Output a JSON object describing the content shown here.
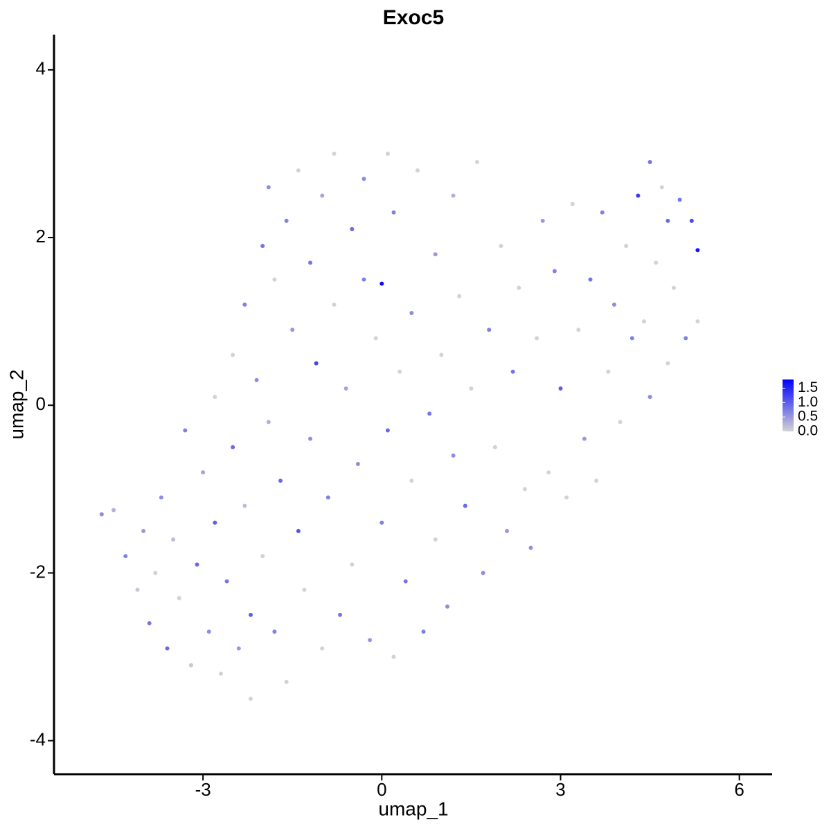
{
  "chart_data": {
    "type": "scatter",
    "title": "Exoc5",
    "x_label": "umap_1",
    "y_label": "umap_2",
    "x": [
      -4.7,
      -4.5,
      -4.3,
      -4.1,
      -4.0,
      -3.9,
      -3.8,
      -3.7,
      -3.6,
      -3.5,
      -3.4,
      -3.3,
      -3.2,
      -3.1,
      -3.0,
      -2.9,
      -2.8,
      -2.8,
      -2.7,
      -2.6,
      -2.5,
      -2.5,
      -2.4,
      -2.3,
      -2.3,
      -2.2,
      -2.2,
      -2.1,
      -2.0,
      -2.0,
      -1.9,
      -1.9,
      -1.8,
      -1.8,
      -1.7,
      -1.6,
      -1.6,
      -1.5,
      -1.4,
      -1.4,
      -1.3,
      -1.2,
      -1.2,
      -1.1,
      -1.0,
      -1.0,
      -0.9,
      -0.8,
      -0.8,
      -0.7,
      -0.6,
      -0.5,
      -0.5,
      -0.4,
      -0.3,
      -0.3,
      -0.2,
      -0.1,
      0.0,
      0.0,
      0.1,
      0.1,
      0.2,
      0.2,
      0.3,
      0.4,
      0.5,
      0.5,
      0.6,
      0.7,
      0.8,
      0.9,
      0.9,
      1.0,
      1.1,
      1.2,
      1.2,
      1.3,
      1.4,
      1.5,
      1.6,
      1.7,
      1.8,
      1.9,
      2.0,
      2.1,
      2.2,
      2.3,
      2.4,
      2.5,
      2.6,
      2.7,
      2.8,
      2.9,
      3.0,
      3.1,
      3.2,
      3.3,
      3.4,
      3.5,
      3.6,
      3.7,
      3.8,
      3.9,
      4.0,
      4.1,
      4.2,
      4.3,
      4.4,
      4.5,
      4.5,
      4.6,
      4.7,
      4.8,
      4.8,
      4.9,
      5.0,
      5.1,
      5.2,
      5.3,
      5.3
    ],
    "y": [
      -1.3,
      -1.25,
      -1.8,
      -2.2,
      -1.5,
      -2.6,
      -2.0,
      -1.1,
      -2.9,
      -1.6,
      -2.3,
      -0.3,
      -3.1,
      -1.9,
      -0.8,
      -2.7,
      0.1,
      -1.4,
      -3.2,
      -2.1,
      0.6,
      -0.5,
      -2.9,
      1.2,
      -1.2,
      -3.5,
      -2.5,
      0.3,
      1.9,
      -1.8,
      2.6,
      -0.2,
      -2.7,
      1.5,
      -0.9,
      2.2,
      -3.3,
      0.9,
      -1.5,
      2.8,
      -2.2,
      1.7,
      -0.4,
      0.5,
      2.5,
      -2.9,
      -1.1,
      1.2,
      3.0,
      -2.5,
      0.2,
      2.1,
      -1.9,
      -0.7,
      1.5,
      2.7,
      -2.8,
      0.8,
      1.45,
      -1.4,
      -0.3,
      3.0,
      -3.0,
      2.3,
      0.4,
      -2.1,
      1.1,
      -0.9,
      2.8,
      -2.7,
      -0.1,
      1.8,
      -1.6,
      0.6,
      -2.4,
      2.5,
      -0.6,
      1.3,
      -1.2,
      0.2,
      2.9,
      -2.0,
      0.9,
      -0.5,
      1.9,
      -1.5,
      0.4,
      1.4,
      -1.0,
      -1.7,
      0.8,
      2.2,
      -0.8,
      1.6,
      0.2,
      -1.1,
      2.4,
      0.9,
      -0.4,
      1.5,
      -0.9,
      2.3,
      0.4,
      1.2,
      -0.2,
      1.9,
      0.8,
      2.5,
      1.0,
      2.9,
      0.1,
      1.7,
      2.6,
      0.5,
      2.2,
      1.4,
      2.45,
      0.8,
      2.2,
      1.85,
      1.0
    ],
    "values": [
      0.6,
      0.3,
      0.7,
      0.1,
      0.5,
      0.8,
      0.0,
      0.6,
      0.9,
      0.2,
      0.0,
      0.7,
      0.1,
      0.9,
      0.4,
      0.6,
      0.0,
      1.0,
      0.0,
      0.8,
      0.0,
      0.9,
      0.5,
      0.7,
      0.2,
      0.0,
      1.0,
      0.6,
      0.8,
      0.0,
      0.6,
      0.3,
      0.7,
      0.0,
      0.9,
      0.7,
      0.0,
      0.5,
      1.1,
      0.0,
      0.0,
      0.8,
      0.6,
      1.2,
      0.4,
      0.0,
      0.7,
      0.0,
      0.0,
      0.8,
      0.4,
      0.9,
      0.0,
      0.6,
      0.7,
      0.6,
      0.5,
      0.0,
      1.7,
      0.7,
      0.9,
      0.0,
      0.0,
      0.7,
      0.0,
      0.8,
      0.6,
      0.0,
      0.0,
      0.7,
      0.8,
      0.5,
      0.0,
      0.0,
      0.6,
      0.3,
      0.6,
      0.0,
      0.9,
      0.0,
      0.0,
      0.6,
      0.7,
      0.0,
      0.0,
      0.5,
      0.8,
      0.0,
      0.0,
      0.6,
      0.0,
      0.5,
      0.0,
      0.7,
      1.0,
      0.0,
      0.0,
      0.0,
      0.5,
      0.8,
      0.0,
      0.7,
      0.0,
      0.6,
      0.0,
      0.0,
      0.7,
      1.3,
      0.0,
      0.8,
      0.6,
      0.0,
      0.0,
      0.0,
      0.9,
      0.0,
      0.8,
      0.7,
      1.2,
      1.6,
      0.0
    ],
    "low_color": "#d3d3d3",
    "high_color": "#0000ff",
    "xlim": [
      -5.5,
      6.55
    ],
    "ylim": [
      -4.4,
      4.42
    ],
    "xticks": [
      -3,
      0,
      3,
      6
    ],
    "yticks": [
      -4,
      -2,
      0,
      2,
      4
    ],
    "colorbar_lim": [
      0,
      1.8
    ],
    "colorbar_ticks": [
      {
        "value": 0,
        "label": "0.0"
      },
      0.5,
      {
        "value": 1,
        "label": "1.0"
      },
      1.5
    ]
  }
}
